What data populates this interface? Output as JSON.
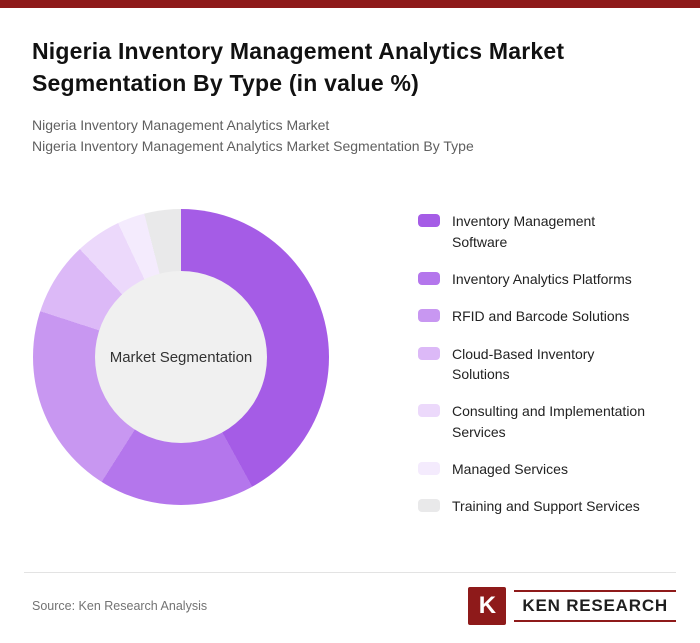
{
  "page": {
    "title": "Nigeria Inventory Management Analytics Market Segmentation By Type (in value %)",
    "subtitle1": "Nigeria Inventory Management Analytics Market",
    "subtitle2": "Nigeria Inventory Management Analytics Market Segmentation By Type",
    "brand_color": "#8e1a1a"
  },
  "chart_data": {
    "type": "pie",
    "subtype": "donut",
    "title": "Nigeria Inventory Management Analytics Market Segmentation By Type (in value %)",
    "unit": "value %",
    "center_label": "Market Segmentation",
    "hole_color": "#f0f0f0",
    "legend_position": "right",
    "start_angle_deg": 0,
    "segments": [
      {
        "label": "Inventory Management Software",
        "value": 42,
        "color": "#a55ce6"
      },
      {
        "label": "Inventory Analytics Platforms",
        "value": 17,
        "color": "#b476ec"
      },
      {
        "label": "RFID and Barcode Solutions",
        "value": 21,
        "color": "#c897f1"
      },
      {
        "label": "Cloud-Based Inventory Solutions",
        "value": 8,
        "color": "#dcb9f7"
      },
      {
        "label": "Consulting and Implementation Services",
        "value": 5,
        "color": "#ecd9fb"
      },
      {
        "label": "Managed Services",
        "value": 3,
        "color": "#f4ebfd"
      },
      {
        "label": "Training and Support Services",
        "value": 4,
        "color": "#e9e9ea"
      }
    ]
  },
  "footer": {
    "source": "Source: Ken Research Analysis",
    "logo": {
      "monogram": "K",
      "text": "KEN RESEARCH"
    }
  }
}
